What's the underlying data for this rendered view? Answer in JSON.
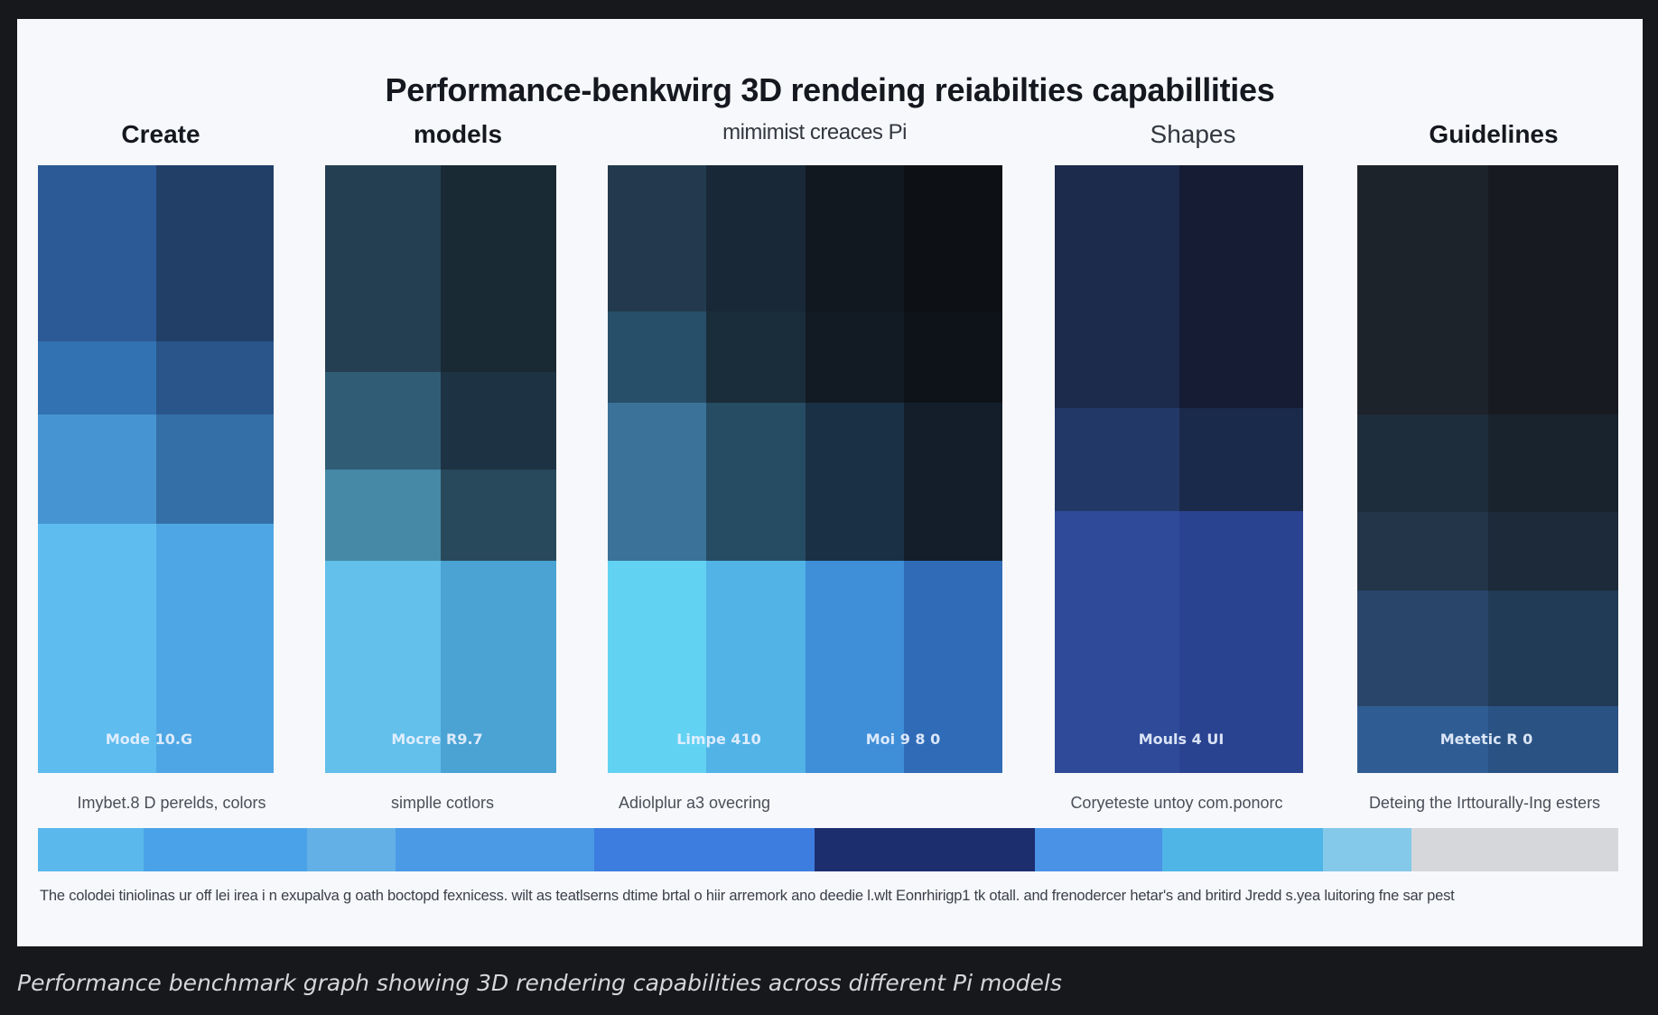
{
  "figure_caption": "Performance benchmark graph showing 3D rendering capabilities across different Pi models",
  "footnote": "The colodei tiniolinas ur off lei irea i n exupalva g oath boctopd fexnicess.  wilt as teatlserns dtime brtal o hiir arremork ano deedie l.wlt Eonrhirigp1 tk otall. and frenodercer hetar's and britird Jredd s.yea luitoring fne sar pest",
  "palette": {
    "page_bg": "#17181b",
    "panel_bg": "#f7f8fc",
    "strip": [
      "#5ab8ec",
      "#4aa3e8",
      "#62b0e6",
      "#4a9ae6",
      "#3d7ddf",
      "#1c2e6e",
      "#4a92e6",
      "#4fb5e6",
      "#85c9ea",
      "#d5d7db"
    ]
  },
  "chart_data": {
    "type": "heatmap",
    "title": "Performance-benkwirg 3D rendeing reiabilties capabillities",
    "columns": [
      {
        "header": "Create",
        "model_labels": [
          "Mode 10.G"
        ],
        "caption": "Imybet.8 D perelds, colors",
        "grid": [
          [
            "#2b5a96",
            "#223f68"
          ],
          [
            "#3272b2",
            "#29558b"
          ],
          [
            "#4794d2",
            "#346fa7"
          ],
          [
            "#5ebcef",
            "#4ea7e4"
          ]
        ],
        "row_fractions": [
          0.29,
          0.12,
          0.18,
          0.41
        ]
      },
      {
        "header": "models",
        "model_labels": [
          "Mocre R9.7"
        ],
        "caption": "simplle cotlors",
        "grid": [
          [
            "#253f52",
            "#1a2a34"
          ],
          [
            "#305c76",
            "#1d3344"
          ],
          [
            "#4589a6",
            "#28495b"
          ],
          [
            "#62c0ea",
            "#4aa3d3"
          ]
        ],
        "row_fractions": [
          0.34,
          0.16,
          0.15,
          0.35
        ]
      },
      {
        "header": "mimimist creaces Pi",
        "model_labels": [
          "Limpe 410",
          "Moi 9 8 0"
        ],
        "caption": "Adiolplur a3 ovecring",
        "grid": [
          [
            "#233a4e",
            "#192836",
            "#111820",
            "#0d1116"
          ],
          [
            "#284f69",
            "#1a2d3a",
            "#121b24",
            "#0e1319"
          ],
          [
            "#3b7299",
            "#254c63",
            "#1a3044",
            "#131e2a"
          ],
          [
            "#62d2f2",
            "#52b4e6",
            "#3f8ed8",
            "#2f6bb6"
          ]
        ],
        "row_fractions": [
          0.24,
          0.15,
          0.26,
          0.35
        ]
      },
      {
        "header": "Shapes",
        "model_labels": [
          "Mouls 4 UI"
        ],
        "caption": "Coryeteste untoy com.ponorc",
        "grid": [
          [
            "#1c2a4c",
            "#151c33"
          ],
          [
            "#223968",
            "#1a2a4a"
          ],
          [
            "#2e4a98",
            "#2a4390"
          ]
        ],
        "row_fractions": [
          0.4,
          0.17,
          0.43
        ]
      },
      {
        "header": "Guidelines",
        "model_labels": [
          "Metetic R 0"
        ],
        "caption": "Deteing the Irttourally-Ing esters",
        "grid": [
          [
            "#1d232b",
            "#171b21"
          ],
          [
            "#1e2d3b",
            "#19232d"
          ],
          [
            "#223549",
            "#1c2a3a"
          ],
          [
            "#29466a",
            "#213a56"
          ],
          [
            "#2f5d93",
            "#2a5283"
          ]
        ],
        "row_fractions": [
          0.41,
          0.16,
          0.13,
          0.19,
          0.11
        ]
      }
    ]
  }
}
